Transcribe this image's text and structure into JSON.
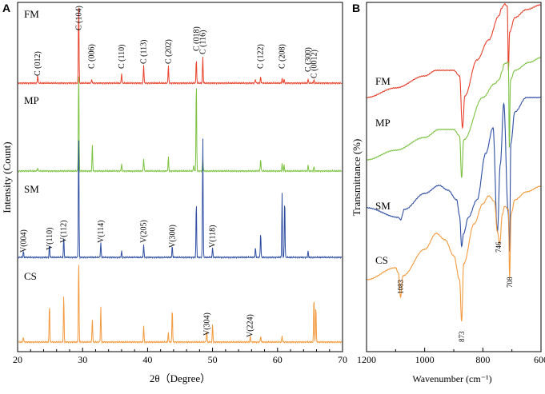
{
  "chart_data": [
    {
      "type": "line",
      "panel_label": "A",
      "title": "",
      "xlabel": "2θ（Degree）",
      "ylabel": "Intensity (Count)",
      "xlim": [
        20,
        70
      ],
      "xticks": [
        20,
        30,
        40,
        50,
        60,
        70
      ],
      "series": [
        {
          "name": "FM",
          "color": "#e8402a",
          "peaks": [
            [
              23.1,
              0.1
            ],
            [
              29.4,
              1.0
            ],
            [
              31.4,
              0.05
            ],
            [
              36.0,
              0.12
            ],
            [
              39.4,
              0.22
            ],
            [
              43.2,
              0.22
            ],
            [
              47.5,
              0.3
            ],
            [
              48.5,
              0.32
            ],
            [
              56.6,
              0.05
            ],
            [
              57.4,
              0.08
            ],
            [
              60.7,
              0.06
            ],
            [
              61.0,
              0.05
            ],
            [
              64.7,
              0.05
            ],
            [
              65.6,
              0.04
            ]
          ]
        },
        {
          "name": "MP",
          "color": "#7cc242",
          "peaks": [
            [
              23.1,
              0.03
            ],
            [
              29.4,
              1.0
            ],
            [
              31.5,
              0.26
            ],
            [
              36.0,
              0.07
            ],
            [
              39.4,
              0.12
            ],
            [
              43.2,
              0.14
            ],
            [
              47.1,
              0.06
            ],
            [
              47.5,
              0.9
            ],
            [
              48.5,
              0.13
            ],
            [
              57.4,
              0.12
            ],
            [
              60.7,
              0.07
            ],
            [
              61.0,
              0.06
            ],
            [
              64.7,
              0.06
            ],
            [
              65.6,
              0.04
            ]
          ]
        },
        {
          "name": "SM",
          "color": "#2e4ea2",
          "peaks": [
            [
              20.9,
              0.05
            ],
            [
              24.9,
              0.1
            ],
            [
              27.1,
              0.16
            ],
            [
              29.4,
              1.0
            ],
            [
              32.8,
              0.12
            ],
            [
              36.0,
              0.05
            ],
            [
              39.4,
              0.1
            ],
            [
              43.8,
              0.09
            ],
            [
              47.5,
              0.45
            ],
            [
              48.5,
              0.95
            ],
            [
              50.0,
              0.08
            ],
            [
              56.6,
              0.08
            ],
            [
              57.4,
              0.2
            ],
            [
              60.7,
              0.5
            ],
            [
              61.1,
              0.48
            ],
            [
              64.7,
              0.05
            ]
          ]
        },
        {
          "name": "CS",
          "color": "#f39a3e",
          "peaks": [
            [
              20.9,
              0.05
            ],
            [
              24.9,
              0.4
            ],
            [
              27.1,
              0.49
            ],
            [
              29.4,
              0.85
            ],
            [
              31.5,
              0.24
            ],
            [
              32.8,
              0.36
            ],
            [
              39.4,
              0.16
            ],
            [
              43.2,
              0.1
            ],
            [
              43.8,
              0.35
            ],
            [
              49.1,
              0.12
            ],
            [
              50.0,
              0.18
            ],
            [
              55.8,
              0.06
            ],
            [
              57.4,
              0.06
            ],
            [
              60.7,
              0.06
            ],
            [
              65.6,
              0.48
            ],
            [
              65.9,
              0.38
            ]
          ]
        }
      ],
      "annotations": [
        {
          "text": "C (012)",
          "x": 23.1,
          "series": "FM"
        },
        {
          "text": "C (104)",
          "x": 29.4,
          "series": "FM"
        },
        {
          "text": "C (006)",
          "x": 31.4,
          "series": "FM"
        },
        {
          "text": "C (110)",
          "x": 36.0,
          "series": "FM"
        },
        {
          "text": "C (113)",
          "x": 39.4,
          "series": "FM"
        },
        {
          "text": "C (202)",
          "x": 43.2,
          "series": "FM"
        },
        {
          "text": "C (018)",
          "x": 47.5,
          "series": "FM"
        },
        {
          "text": "C (116)",
          "x": 48.5,
          "series": "FM"
        },
        {
          "text": "C (122)",
          "x": 57.4,
          "series": "FM"
        },
        {
          "text": "C (208)",
          "x": 60.7,
          "series": "FM"
        },
        {
          "text": "C (300)",
          "x": 64.7,
          "series": "FM"
        },
        {
          "text": "C (0012)",
          "x": 65.6,
          "series": "FM"
        },
        {
          "text": "V(004)",
          "x": 20.9,
          "series": "SM"
        },
        {
          "text": "V(110)",
          "x": 24.9,
          "series": "SM"
        },
        {
          "text": "V(112)",
          "x": 27.1,
          "series": "SM"
        },
        {
          "text": "V(114)",
          "x": 32.8,
          "series": "SM"
        },
        {
          "text": "V(205)",
          "x": 39.4,
          "series": "SM"
        },
        {
          "text": "V(300)",
          "x": 43.8,
          "series": "SM"
        },
        {
          "text": "V(118)",
          "x": 50.0,
          "series": "SM"
        },
        {
          "text": "V(304)",
          "x": 49.1,
          "series": "CS"
        },
        {
          "text": "V(224)",
          "x": 55.8,
          "series": "CS"
        }
      ]
    },
    {
      "type": "line",
      "panel_label": "B",
      "title": "",
      "xlabel": "Wavenumber (cm⁻¹)",
      "ylabel": "Transmittance (%)",
      "xlim": [
        1200,
        600
      ],
      "xticks": [
        1200,
        1000,
        800,
        600
      ],
      "series": [
        {
          "name": "FM",
          "color": "#e8402a"
        },
        {
          "name": "MP",
          "color": "#7cc242"
        },
        {
          "name": "SM",
          "color": "#2e4ea2"
        },
        {
          "name": "CS",
          "color": "#f39a3e"
        }
      ],
      "annotations": [
        {
          "text": "1083",
          "x": 1083
        },
        {
          "text": "873",
          "x": 873
        },
        {
          "text": "746",
          "x": 746
        },
        {
          "text": "708",
          "x": 708
        }
      ]
    }
  ]
}
